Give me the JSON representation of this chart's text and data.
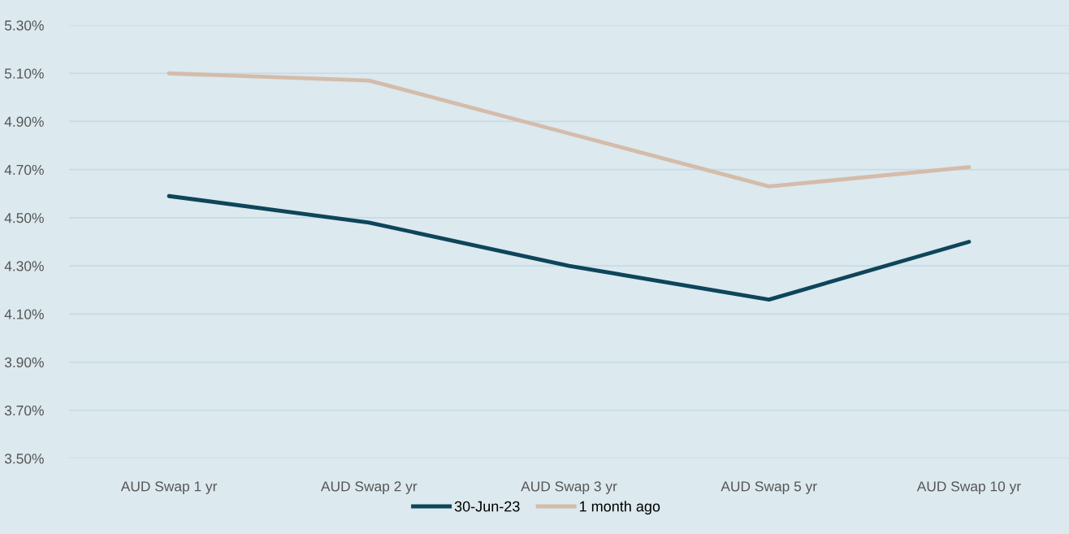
{
  "chart_data": {
    "type": "line",
    "categories": [
      "AUD Swap 1 yr",
      "AUD Swap 2 yr",
      "AUD Swap 3 yr",
      "AUD Swap 5 yr",
      "AUD Swap 10 yr"
    ],
    "series": [
      {
        "name": "30-Jun-23",
        "color": "#0e4559",
        "values": [
          4.59,
          4.48,
          4.3,
          4.16,
          4.4
        ]
      },
      {
        "name": "1 month ago",
        "color": "#d4bcaa",
        "values": [
          5.1,
          5.07,
          4.85,
          4.63,
          4.71
        ]
      }
    ],
    "ylim": [
      3.5,
      5.3
    ],
    "yticks": [
      {
        "value": 3.5,
        "label": "3.50%"
      },
      {
        "value": 3.7,
        "label": "3.70%"
      },
      {
        "value": 3.9,
        "label": "3.90%"
      },
      {
        "value": 4.1,
        "label": "4.10%"
      },
      {
        "value": 4.3,
        "label": "4.30%"
      },
      {
        "value": 4.5,
        "label": "4.50%"
      },
      {
        "value": 4.7,
        "label": "4.70%"
      },
      {
        "value": 4.9,
        "label": "4.90%"
      },
      {
        "value": 5.1,
        "label": "5.10%"
      },
      {
        "value": 5.3,
        "label": "5.30%"
      }
    ],
    "grid": "y",
    "legend": "bottom",
    "marker": "none",
    "line_style": "solid"
  }
}
